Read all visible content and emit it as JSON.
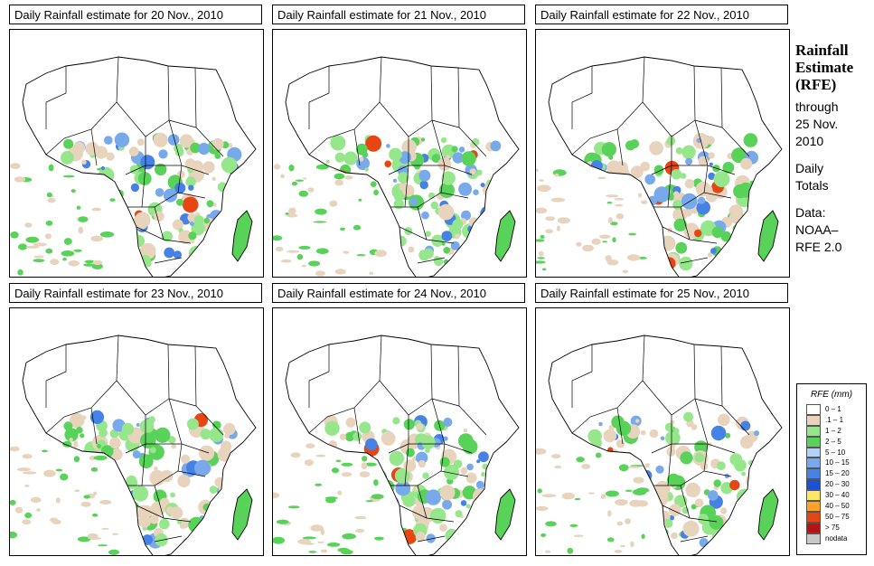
{
  "panels": [
    {
      "title": "Daily Rainfall estimate for  20 Nov., 2010"
    },
    {
      "title": "Daily Rainfall estimate for  21 Nov., 2010"
    },
    {
      "title": "Daily Rainfall estimate for  22 Nov., 2010"
    },
    {
      "title": "Daily Rainfall estimate for  23 Nov., 2010"
    },
    {
      "title": "Daily Rainfall estimate for  24 Nov., 2010"
    },
    {
      "title": "Daily Rainfall estimate for  25 Nov., 2010"
    }
  ],
  "side": {
    "heading_line1": "Rainfall",
    "heading_line2": "Estimate",
    "heading_line3": "(RFE)",
    "through": "through",
    "date_line1": "25 Nov.",
    "date_line2": "2010",
    "daily": "Daily",
    "totals": "Totals",
    "data_label": "Data:",
    "source_line1": "NOAA–",
    "source_line2": "RFE 2.0"
  },
  "legend": {
    "title": "RFE (mm)",
    "items": [
      {
        "label": "0 – 1",
        "color": "#ffffff"
      },
      {
        "label": ".1 – 1",
        "color": "#e8d3bd"
      },
      {
        "label": "1 – 2",
        "color": "#96e68c"
      },
      {
        "label": "2 – 5",
        "color": "#59d259"
      },
      {
        "label": "5 – 10",
        "color": "#b4d2f5"
      },
      {
        "label": "10 – 15",
        "color": "#78aaeb"
      },
      {
        "label": "15 – 20",
        "color": "#4682e6"
      },
      {
        "label": "20 – 30",
        "color": "#1e50d2"
      },
      {
        "label": "30 – 40",
        "color": "#ffe664"
      },
      {
        "label": "40 – 50",
        "color": "#ffa028"
      },
      {
        "label": "50 – 75",
        "color": "#e64614"
      },
      {
        "label": "> 75",
        "color": "#b41414"
      },
      {
        "label": "nodata",
        "color": "#c8c8c8"
      }
    ]
  }
}
